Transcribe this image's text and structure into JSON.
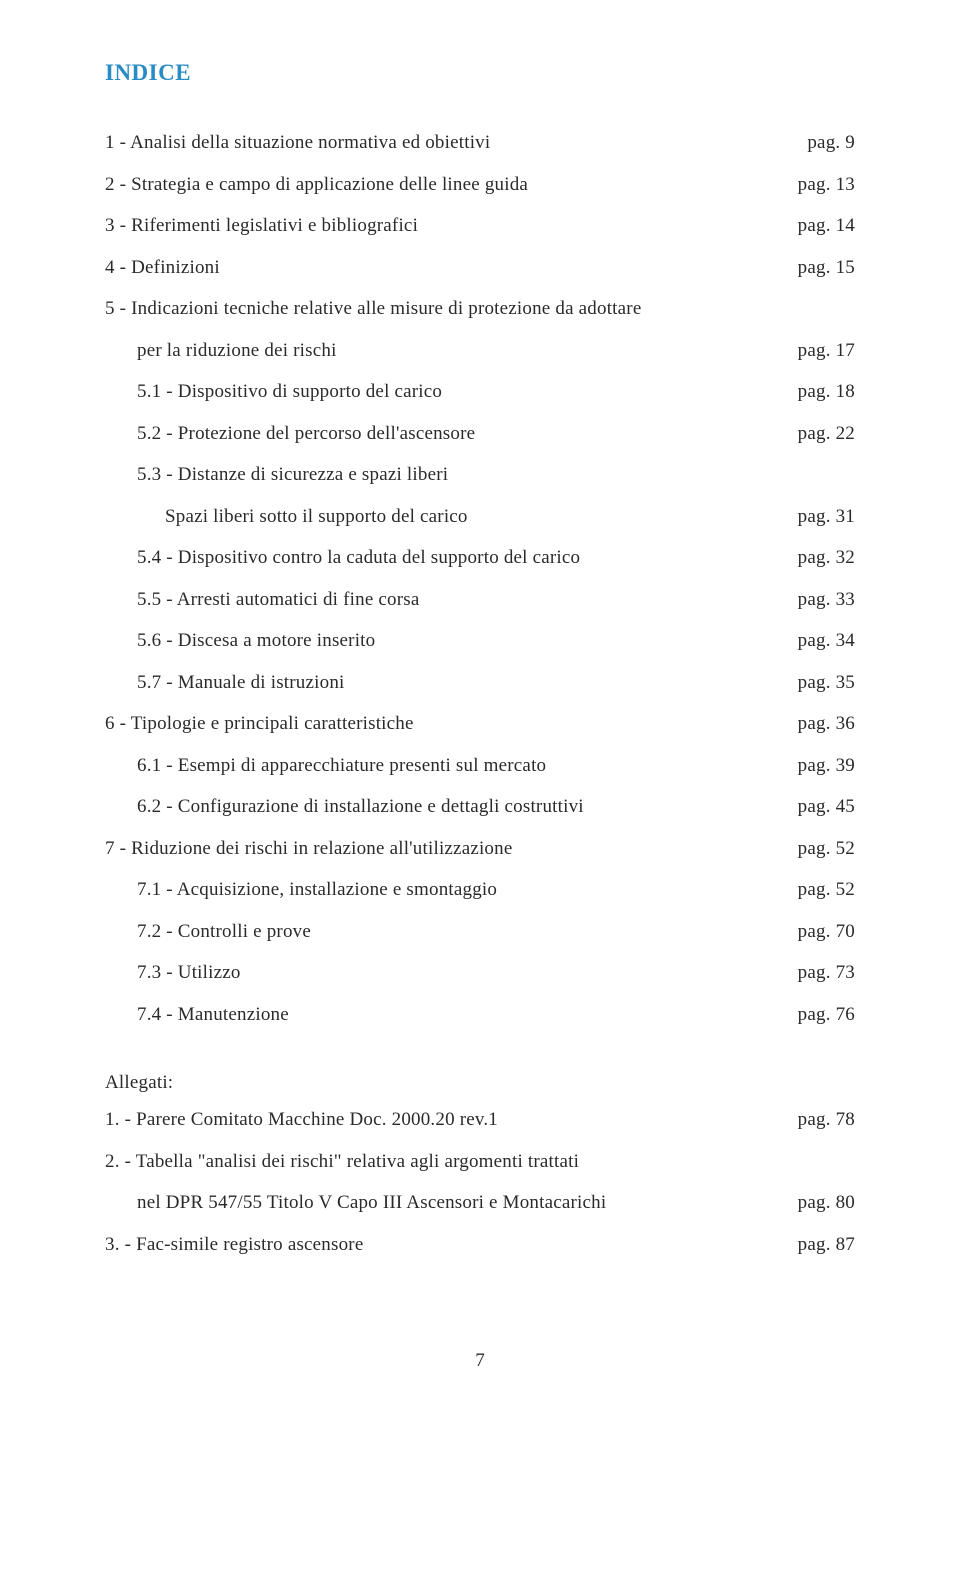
{
  "title": "INDICE",
  "toc": [
    {
      "label": "1 - Analisi della situazione normativa ed obiettivi",
      "page": "pag.   9",
      "indent": 0
    },
    {
      "label": "2 - Strategia e campo di applicazione delle linee guida",
      "page": "pag. 13",
      "indent": 0
    },
    {
      "label": "3 - Riferimenti legislativi e bibliografici",
      "page": "pag. 14",
      "indent": 0
    },
    {
      "label": "4 - Definizioni",
      "page": "pag. 15",
      "indent": 0
    },
    {
      "label": "5 - Indicazioni tecniche relative alle misure di protezione da adottare",
      "page": "",
      "indent": 0
    },
    {
      "label": "per la riduzione dei rischi",
      "page": "pag. 17",
      "indent": 1
    },
    {
      "label": "5.1 - Dispositivo di supporto del carico",
      "page": "pag. 18",
      "indent": 1
    },
    {
      "label": "5.2 - Protezione del percorso dell'ascensore",
      "page": "pag. 22",
      "indent": 1
    },
    {
      "label": "5.3 - Distanze di sicurezza e spazi liberi",
      "page": "",
      "indent": 1
    },
    {
      "label": "Spazi liberi sotto il supporto del carico",
      "page": "pag. 31",
      "indent": 2
    },
    {
      "label": "5.4 - Dispositivo contro la caduta del supporto del carico",
      "page": "pag. 32",
      "indent": 1
    },
    {
      "label": "5.5 - Arresti automatici di fine corsa",
      "page": "pag. 33",
      "indent": 1
    },
    {
      "label": "5.6 - Discesa a motore inserito",
      "page": "pag. 34",
      "indent": 1
    },
    {
      "label": "5.7 - Manuale di istruzioni",
      "page": "pag. 35",
      "indent": 1
    },
    {
      "label": "6 - Tipologie e principali caratteristiche",
      "page": "pag. 36",
      "indent": 0
    },
    {
      "label": "6.1 - Esempi di apparecchiature presenti sul mercato",
      "page": "pag. 39",
      "indent": 1
    },
    {
      "label": "6.2 - Configurazione di installazione e dettagli costruttivi",
      "page": "pag. 45",
      "indent": 1
    },
    {
      "label": "7 - Riduzione dei rischi in relazione all'utilizzazione",
      "page": "pag. 52",
      "indent": 0
    },
    {
      "label": "7.1 - Acquisizione, installazione e smontaggio",
      "page": "pag. 52",
      "indent": 1
    },
    {
      "label": "7.2 - Controlli e prove",
      "page": "pag. 70",
      "indent": 1
    },
    {
      "label": "7.3 - Utilizzo",
      "page": "pag. 73",
      "indent": 1
    },
    {
      "label": "7.4 - Manutenzione",
      "page": "pag. 76",
      "indent": 1
    }
  ],
  "allegati_header": "Allegati:",
  "allegati": [
    {
      "label": "1. - Parere Comitato Macchine Doc. 2000.20 rev.1",
      "page": "pag. 78",
      "indent": 0
    },
    {
      "label": "2. - Tabella \"analisi dei rischi\" relativa agli argomenti trattati",
      "page": "",
      "indent": 0
    },
    {
      "label": "nel DPR 547/55 Titolo V Capo III Ascensori e Montacarichi",
      "page": "pag. 80",
      "indent": 1
    },
    {
      "label": "3. - Fac-simile registro ascensore",
      "page": "pag. 87",
      "indent": 0
    }
  ],
  "page_number": "7",
  "colors": {
    "title": "#2a8cc4",
    "text": "#2a2a2a",
    "background": "#ffffff"
  },
  "fonts": {
    "title_size": 23,
    "body_size": 19
  }
}
